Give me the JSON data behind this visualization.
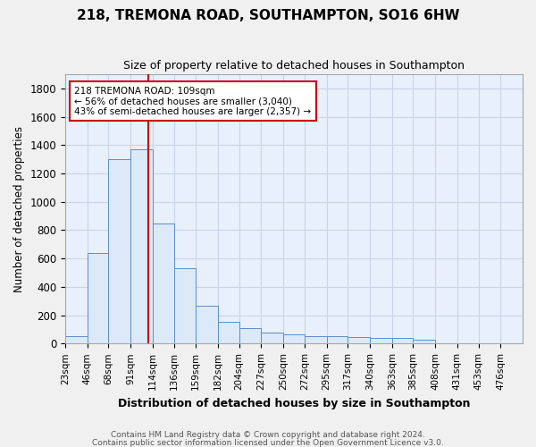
{
  "title": "218, TREMONA ROAD, SOUTHAMPTON, SO16 6HW",
  "subtitle": "Size of property relative to detached houses in Southampton",
  "xlabel": "Distribution of detached houses by size in Southampton",
  "ylabel": "Number of detached properties",
  "bar_color": "#dce9f8",
  "bar_edge_color": "#5b8fc9",
  "background_color": "#e8f0fb",
  "fig_facecolor": "#f0f0f0",
  "grid_color": "#c8d4e8",
  "bin_labels": [
    "23sqm",
    "46sqm",
    "68sqm",
    "91sqm",
    "114sqm",
    "136sqm",
    "159sqm",
    "182sqm",
    "204sqm",
    "227sqm",
    "250sqm",
    "272sqm",
    "295sqm",
    "317sqm",
    "340sqm",
    "363sqm",
    "385sqm",
    "408sqm",
    "431sqm",
    "453sqm",
    "476sqm"
  ],
  "bin_edges": [
    23,
    46,
    68,
    91,
    114,
    136,
    159,
    182,
    204,
    227,
    250,
    272,
    295,
    317,
    340,
    363,
    385,
    408,
    431,
    453,
    476,
    499
  ],
  "bar_heights": [
    50,
    640,
    1300,
    1370,
    845,
    530,
    265,
    155,
    110,
    80,
    65,
    55,
    50,
    45,
    42,
    38,
    30,
    0,
    0,
    0,
    0
  ],
  "property_sqm": 109,
  "red_line_color": "#cc0000",
  "annotation_text_line1": "218 TREMONA ROAD: 109sqm",
  "annotation_text_line2": "← 56% of detached houses are smaller (3,040)",
  "annotation_text_line3": "43% of semi-detached houses are larger (2,357) →",
  "annotation_box_facecolor": "#ffffff",
  "annotation_box_edgecolor": "#cc0000",
  "ylim": [
    0,
    1900
  ],
  "yticks": [
    0,
    200,
    400,
    600,
    800,
    1000,
    1200,
    1400,
    1600,
    1800
  ],
  "footer_line1": "Contains HM Land Registry data © Crown copyright and database right 2024.",
  "footer_line2": "Contains public sector information licensed under the Open Government Licence v3.0."
}
